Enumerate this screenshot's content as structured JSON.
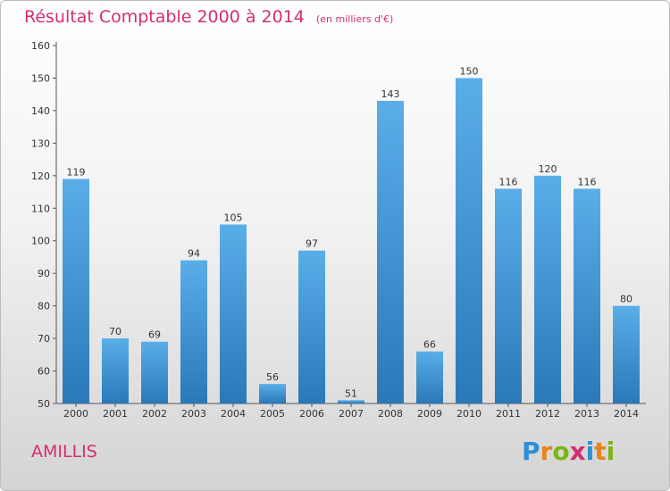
{
  "header": {
    "title": "Résultat Comptable 2000 à 2014",
    "subtitle": "(en milliers d'€)"
  },
  "footer": {
    "commune": "AMILLIS",
    "logo": "Proxiti",
    "logo_letters": [
      {
        "ch": "P",
        "color": "#2f8fd8"
      },
      {
        "ch": "r",
        "color": "#e8841c"
      },
      {
        "ch": "o",
        "color": "#7cb518"
      },
      {
        "ch": "x",
        "color": "#d42e72"
      },
      {
        "ch": "i",
        "color": "#2f8fd8"
      },
      {
        "ch": "t",
        "color": "#e8841c"
      },
      {
        "ch": "i",
        "color": "#7cb518"
      }
    ]
  },
  "colors": {
    "accent": "#d42e72",
    "bar_top": "#5aaee8",
    "bar_bottom": "#2a78b8"
  },
  "chart_data": {
    "type": "bar",
    "categories": [
      "2000",
      "2001",
      "2002",
      "2003",
      "2004",
      "2005",
      "2006",
      "2007",
      "2008",
      "2009",
      "2010",
      "2011",
      "2012",
      "2013",
      "2014"
    ],
    "values": [
      119,
      70,
      69,
      94,
      105,
      56,
      97,
      51,
      143,
      66,
      150,
      116,
      120,
      116,
      80
    ],
    "ylim": [
      50,
      160
    ],
    "yticks": [
      50,
      60,
      70,
      80,
      90,
      100,
      110,
      120,
      130,
      140,
      150,
      160
    ],
    "grid": false
  }
}
